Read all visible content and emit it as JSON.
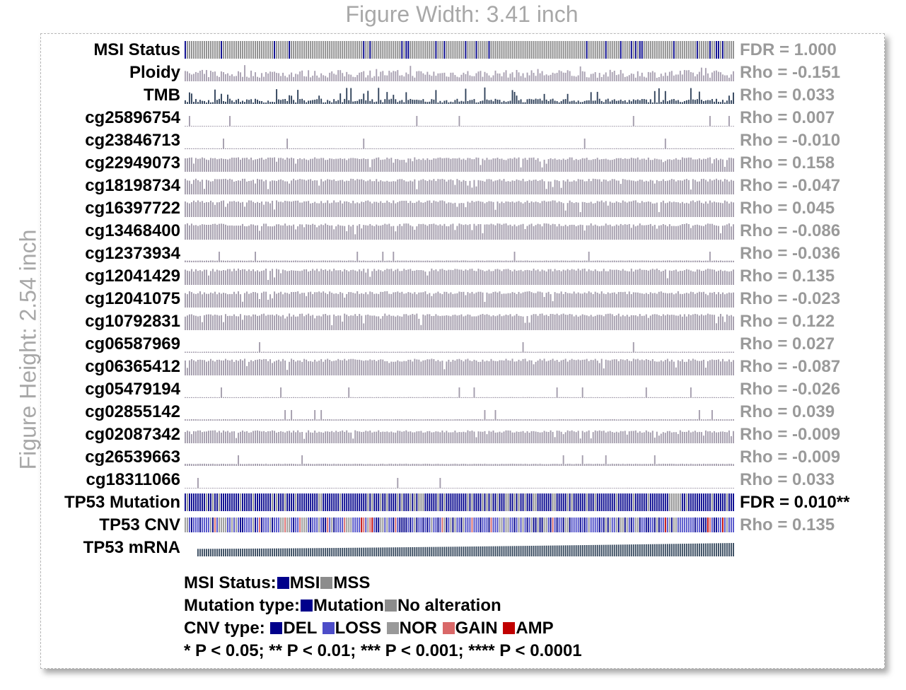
{
  "figure": {
    "width_label": "Figure Width: 3.41 inch",
    "height_label": "Figure Height: 2.54 inch"
  },
  "colors": {
    "msi": "#00008b",
    "mss": "#8c8c8c",
    "mutation": "#00008b",
    "no_alteration": "#8c8c8c",
    "del": "#00008b",
    "loss": "#4d4dc8",
    "nor": "#999999",
    "gain": "#d96868",
    "amp": "#c00000",
    "ploidy_bar": "#a79fb0",
    "tmb_bar": "#2e4059",
    "methylation_bar": "#a29bab",
    "mrna_bar": "#34475c"
  },
  "chart_data": {
    "type": "heatmap",
    "title": "",
    "n_samples": 259,
    "rows": [
      {
        "label": "MSI Status",
        "kind": "categorical",
        "stat": "FDR = 1.000",
        "significant": false
      },
      {
        "label": "Ploidy",
        "kind": "bar",
        "stat": "Rho = -0.151",
        "significant": false
      },
      {
        "label": "TMB",
        "kind": "bar",
        "stat": "Rho = 0.033",
        "significant": false
      },
      {
        "label": "cg25896754",
        "kind": "bar",
        "stat": "Rho = 0.007",
        "significant": false,
        "level": 0.04
      },
      {
        "label": "cg23846713",
        "kind": "bar",
        "stat": "Rho = -0.010",
        "significant": false,
        "level": 0.05
      },
      {
        "label": "cg22949073",
        "kind": "bar",
        "stat": "Rho = 0.158",
        "significant": false,
        "level": 0.78
      },
      {
        "label": "cg18198734",
        "kind": "bar",
        "stat": "Rho = -0.047",
        "significant": false,
        "level": 0.85
      },
      {
        "label": "cg16397722",
        "kind": "bar",
        "stat": "Rho = 0.045",
        "significant": false,
        "level": 0.9
      },
      {
        "label": "cg13468400",
        "kind": "bar",
        "stat": "Rho = -0.086",
        "significant": false,
        "level": 0.88
      },
      {
        "label": "cg12373934",
        "kind": "bar",
        "stat": "Rho = -0.036",
        "significant": false,
        "level": 0.1
      },
      {
        "label": "cg12041429",
        "kind": "bar",
        "stat": "Rho = 0.135",
        "significant": false,
        "level": 0.88
      },
      {
        "label": "cg12041075",
        "kind": "bar",
        "stat": "Rho = -0.023",
        "significant": false,
        "level": 0.88
      },
      {
        "label": "cg10792831",
        "kind": "bar",
        "stat": "Rho = 0.122",
        "significant": false,
        "level": 0.9
      },
      {
        "label": "cg06587969",
        "kind": "bar",
        "stat": "Rho = 0.027",
        "significant": false,
        "level": 0.06
      },
      {
        "label": "cg06365412",
        "kind": "bar",
        "stat": "Rho = -0.087",
        "significant": false,
        "level": 0.9
      },
      {
        "label": "cg05479194",
        "kind": "bar",
        "stat": "Rho = -0.026",
        "significant": false,
        "level": 0.05
      },
      {
        "label": "cg02855142",
        "kind": "bar",
        "stat": "Rho = 0.039",
        "significant": false,
        "level": 0.08
      },
      {
        "label": "cg02087342",
        "kind": "bar",
        "stat": "Rho = -0.009",
        "significant": false,
        "level": 0.7
      },
      {
        "label": "cg26539663",
        "kind": "bar",
        "stat": "Rho = -0.009",
        "significant": false,
        "level": 0.12
      },
      {
        "label": "cg18311066",
        "kind": "bar",
        "stat": "Rho = 0.033",
        "significant": false,
        "level": 0.04
      },
      {
        "label": "TP53 Mutation",
        "kind": "categorical",
        "stat": "FDR = 0.010**",
        "significant": true
      },
      {
        "label": "TP53 CNV",
        "kind": "categorical",
        "stat": "Rho = 0.135",
        "significant": false
      },
      {
        "label": "TP53 mRNA",
        "kind": "bar",
        "stat": "",
        "significant": false,
        "trend": "increasing"
      }
    ],
    "legend": {
      "msi_status": {
        "title": "MSI Status:",
        "entries": [
          {
            "label": "MSI",
            "color": "#00008b"
          },
          {
            "label": "MSS",
            "color": "#8c8c8c"
          }
        ]
      },
      "mutation_type": {
        "title": "Mutation type:",
        "entries": [
          {
            "label": "Mutation",
            "color": "#00008b"
          },
          {
            "label": "No alteration",
            "color": "#8c8c8c"
          }
        ]
      },
      "cnv_type": {
        "title": "CNV type:",
        "entries": [
          {
            "label": "DEL",
            "color": "#00008b"
          },
          {
            "label": "LOSS",
            "color": "#4d4dc8"
          },
          {
            "label": "NOR",
            "color": "#999999"
          },
          {
            "label": "GAIN",
            "color": "#d96868"
          },
          {
            "label": "AMP",
            "color": "#c00000"
          }
        ]
      },
      "significance_note": "* P < 0.05; ** P < 0.01; *** P < 0.001; **** P < 0.0001"
    }
  }
}
